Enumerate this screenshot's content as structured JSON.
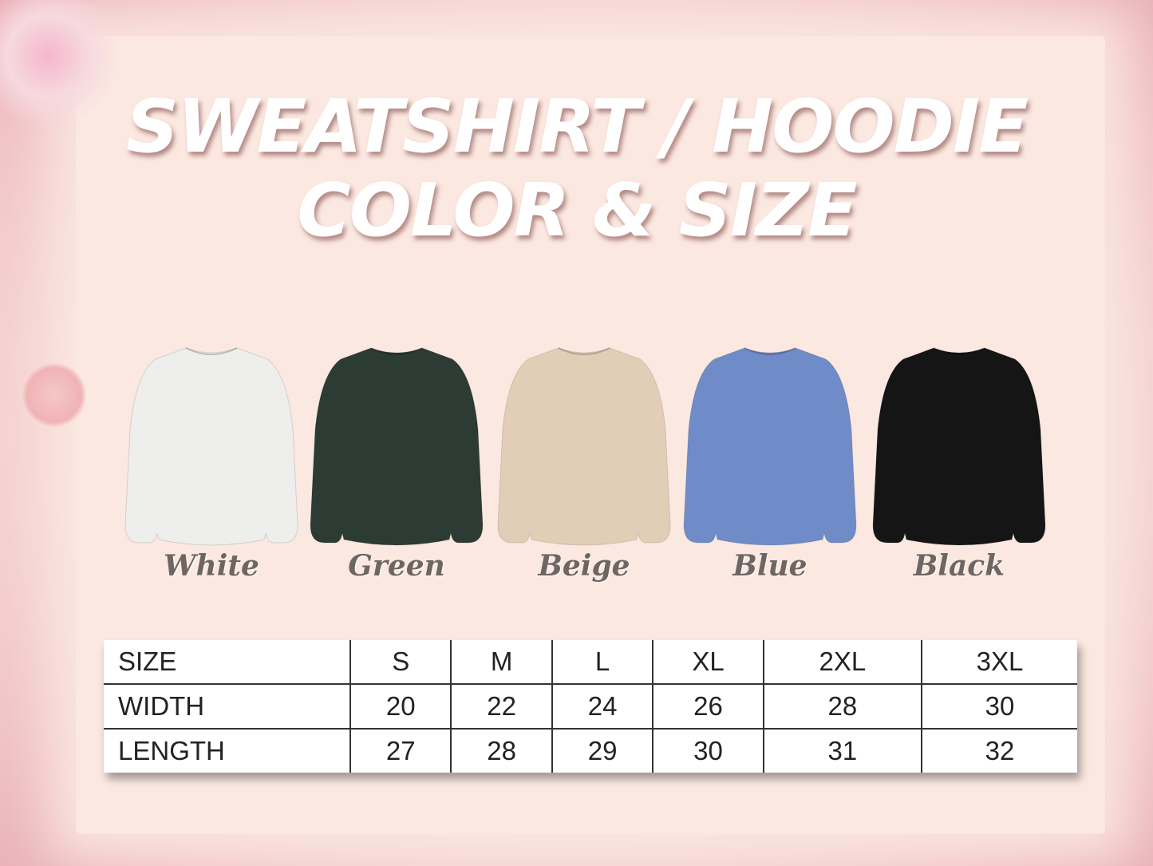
{
  "title": {
    "line1": "SWEATSHIRT / HOODIE",
    "line2": "COLOR & SIZE"
  },
  "colors": [
    {
      "label": "White",
      "hex": "#eeeeec"
    },
    {
      "label": "Green",
      "hex": "#2c3b33"
    },
    {
      "label": "Beige",
      "hex": "#e2cdb6"
    },
    {
      "label": "Blue",
      "hex": "#6f8cc8"
    },
    {
      "label": "Black",
      "hex": "#151515"
    }
  ],
  "size_table": {
    "header": [
      "SIZE",
      "S",
      "M",
      "L",
      "XL",
      "2XL",
      "3XL"
    ],
    "rows": [
      [
        "WIDTH",
        "20",
        "22",
        "24",
        "26",
        "28",
        "30"
      ],
      [
        "LENGTH",
        "27",
        "28",
        "29",
        "30",
        "31",
        "32"
      ]
    ]
  }
}
